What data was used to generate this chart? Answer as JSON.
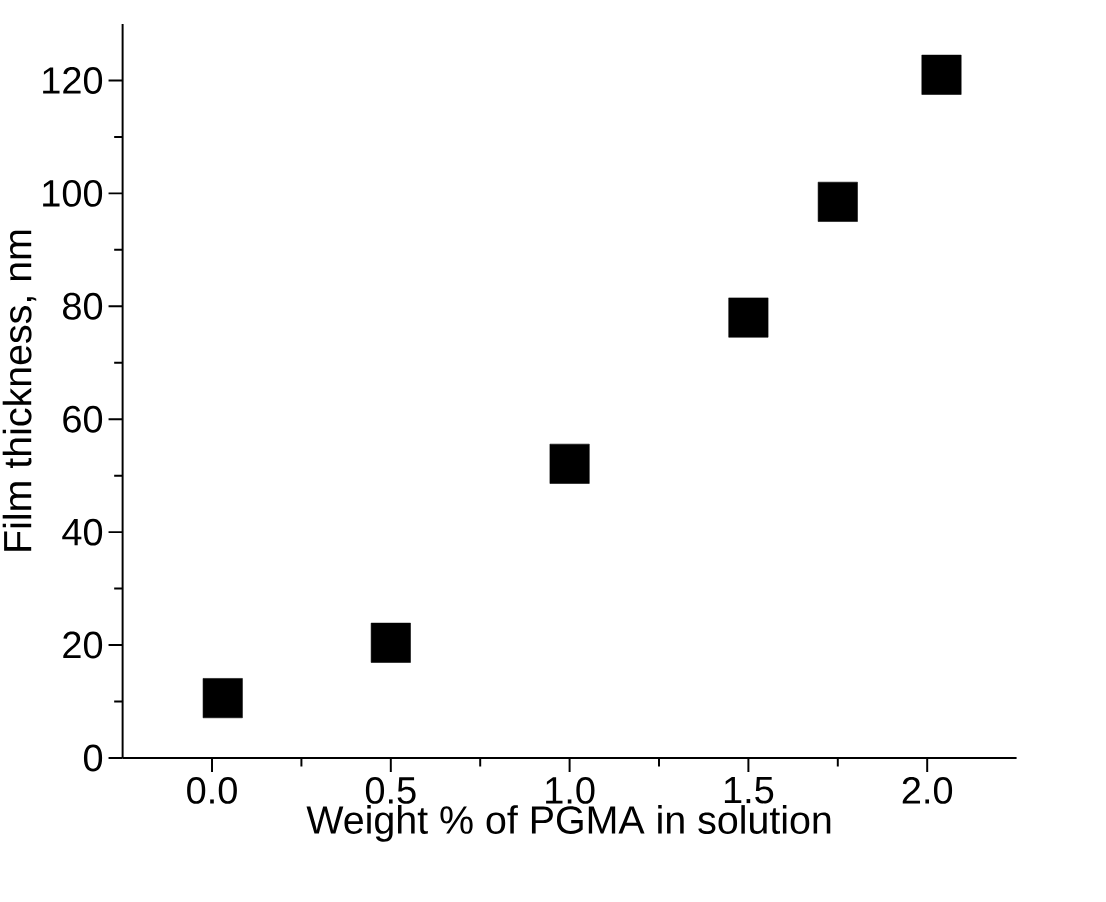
{
  "chart_data": {
    "type": "scatter",
    "xlabel": "Weight % of PGMA in solution",
    "ylabel": "Film thickness, nm",
    "x": [
      0.03,
      0.5,
      1.0,
      1.5,
      1.75,
      2.04
    ],
    "series": [
      {
        "color": "#000000",
        "values": [
          10.6,
          20.4,
          52.1,
          78,
          98.5,
          121
        ]
      }
    ],
    "xlim": [
      -0.25,
      2.25
    ],
    "ylim": [
      0,
      130
    ],
    "xticks": [
      {
        "value": 0,
        "label": "0.0"
      },
      {
        "value": 0.5,
        "label": "0.5"
      },
      {
        "value": 1,
        "label": "1.0"
      },
      {
        "value": 1.5,
        "label": "1.5"
      },
      {
        "value": 2,
        "label": "2.0"
      }
    ],
    "yticks": [
      0,
      20,
      40,
      60,
      80,
      100,
      120
    ],
    "marker": "square",
    "grid": false
  }
}
